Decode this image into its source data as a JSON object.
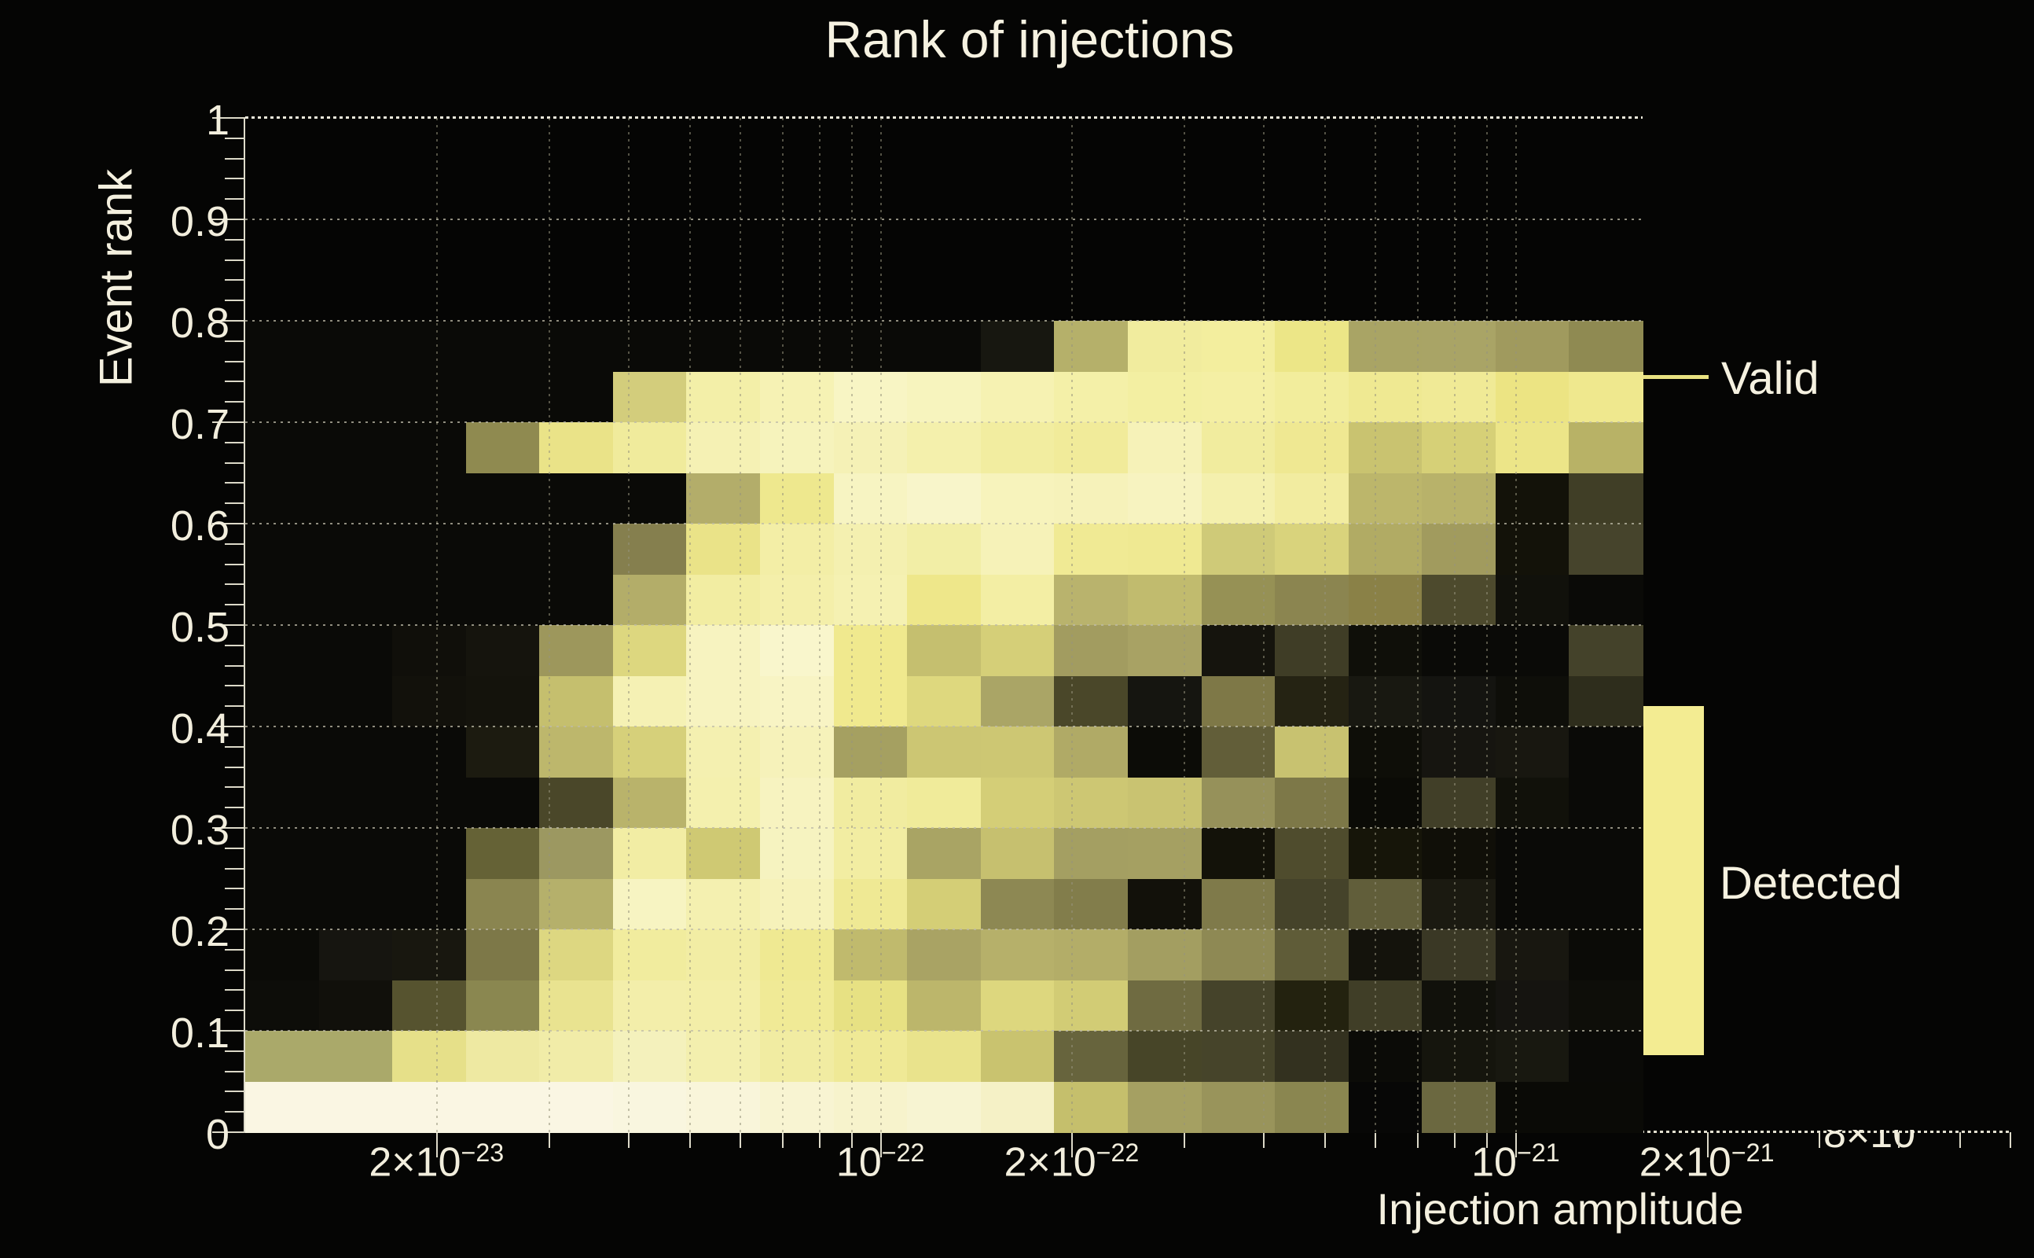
{
  "title": "Rank of injections",
  "y_axis": {
    "label": "Event rank",
    "ticks": [
      {
        "text": "1",
        "value": 1.0
      },
      {
        "text": "0.9",
        "value": 0.9
      },
      {
        "text": "0.8",
        "value": 0.8
      },
      {
        "text": "0.7",
        "value": 0.7
      },
      {
        "text": "0.6",
        "value": 0.6
      },
      {
        "text": "0.5",
        "value": 0.5
      },
      {
        "text": "0.4",
        "value": 0.4
      },
      {
        "text": "0.3",
        "value": 0.3
      },
      {
        "text": "0.2",
        "value": 0.2
      },
      {
        "text": "0.1",
        "value": 0.1
      },
      {
        "text": "0",
        "value": 0.0
      }
    ]
  },
  "x_axis": {
    "label": "Injection amplitude",
    "ticks": [
      {
        "base": "2×10",
        "exp": "−23",
        "value": 2e-23
      },
      {
        "base": "10",
        "exp": "−22",
        "value": 1e-22
      },
      {
        "base": "2×10",
        "exp": "−22",
        "value": 2e-22
      },
      {
        "base": "10",
        "exp": "−21",
        "value": 1e-21
      },
      {
        "base": "2×10",
        "exp": "−21",
        "value": 2e-21
      }
    ],
    "clipped_label": "8×10",
    "minor_values": [
      2e-23,
      3e-23,
      4e-23,
      5e-23,
      6e-23,
      7e-23,
      8e-23,
      9e-23,
      1e-22,
      2e-22,
      3e-22,
      4e-22,
      5e-22,
      6e-22,
      7e-22,
      8e-22,
      9e-22,
      1e-21
    ],
    "extension_tick_values": [
      2e-21,
      3e-21,
      4e-21,
      5e-21,
      6e-21
    ]
  },
  "legend": {
    "valid_label": "Valid",
    "detected_label": "Detected",
    "valid_line_color": "#e9e281",
    "detected_fill_color": "#f3ec92"
  },
  "chart_data": {
    "type": "heatmap",
    "title": "Rank of injections",
    "xlabel": "Injection amplitude",
    "ylabel": "Event rank",
    "x_scale": "log",
    "xlim": [
      1e-23,
      6.7e-21
    ],
    "ylim": [
      0,
      1
    ],
    "grid": "dotted",
    "legend_position": "right",
    "colormap_note": "black = low → dark olive → yellow → cream = high",
    "x_bin_edges": [
      1e-23,
      1.31e-23,
      1.7e-23,
      2.23e-23,
      2.91e-23,
      3.8e-23,
      4.97e-23,
      6.49e-23,
      8.48e-23,
      1.11e-22,
      1.45e-22,
      1.89e-22,
      2.47e-22,
      3.23e-22,
      4.22e-22,
      5.51e-22,
      7.2e-22,
      9.41e-22,
      1.23e-21,
      1.61e-21
    ],
    "y_bin_edges": [
      0,
      0.05,
      0.1,
      0.15,
      0.2,
      0.25,
      0.3,
      0.35,
      0.4,
      0.45,
      0.5,
      0.55,
      0.6,
      0.65,
      0.7,
      0.75,
      0.8
    ],
    "rank_rows_top_to_bottom": [
      "0.75–0.80",
      "0.70–0.75",
      "0.65–0.70",
      "0.60–0.65",
      "0.55–0.60",
      "0.50–0.55",
      "0.45–0.50",
      "0.40–0.45",
      "0.35–0.40",
      "0.30–0.35",
      "0.25–0.30",
      "0.20–0.25",
      "0.15–0.20",
      "0.10–0.15",
      "0.05–0.10",
      "0.00–0.05"
    ],
    "cell_colors_top_to_bottom": [
      [
        "#0a0a07",
        "#0a0a07",
        "#0a0a07",
        "#0a0a07",
        "#0a0a07",
        "#0a0a07",
        "#0a0a07",
        "#0a0a07",
        "#0a0a07",
        "#0a0a07",
        "#171710",
        "#b5b06a",
        "#f1ec9e",
        "#f3ee9e",
        "#ece687",
        "#a9a465",
        "#a9a466",
        "#a09a5e",
        "#8f8a52"
      ],
      [
        "#0a0a07",
        "#0a0a07",
        "#0a0a07",
        "#0a0a07",
        "#0a0a07",
        "#d3cd7c",
        "#f3efa8",
        "#f6f2b4",
        "#f8f5c4",
        "#f7f4be",
        "#f6f2b2",
        "#f4f0a8",
        "#f3efa2",
        "#f4efa4",
        "#f2ed9c",
        "#efe992",
        "#f0ea96",
        "#ece483",
        "#efe88e"
      ],
      [
        "#0a0a07",
        "#0a0a07",
        "#0a0a07",
        "#8f8a50",
        "#eae388",
        "#f0eb9c",
        "#f5f1b4",
        "#f6f3bc",
        "#f5f1b6",
        "#f4f0ac",
        "#f2eda0",
        "#f1eb9a",
        "#f6f2b8",
        "#f1ec9e",
        "#efe892",
        "#c9c370",
        "#d6d077",
        "#ece588",
        "#b8b266"
      ],
      [
        "#0a0a07",
        "#0a0a07",
        "#0a0a07",
        "#0a0a07",
        "#0a0a07",
        "#0a0a07",
        "#b3ad6a",
        "#eee88e",
        "#f7f4c2",
        "#f8f5ca",
        "#f7f3bc",
        "#f6f2ba",
        "#f7f3c0",
        "#f4f0ae",
        "#f2eca0",
        "#bcb66b",
        "#b8b26a",
        "#131209",
        "#403e26"
      ],
      [
        "#0a0a07",
        "#0a0a07",
        "#0a0a07",
        "#0a0a07",
        "#0a0a07",
        "#857f4e",
        "#eae388",
        "#f3eea6",
        "#f4f0b0",
        "#f2eea6",
        "#f6f2b8",
        "#f0ea94",
        "#efe992",
        "#cfca78",
        "#d9d37c",
        "#b1ab64",
        "#a19b5e",
        "#131209",
        "#46442c"
      ],
      [
        "#0a0a07",
        "#0a0a07",
        "#0a0a07",
        "#0a0a07",
        "#0a0a07",
        "#b3ad69",
        "#f2eda2",
        "#f4efaa",
        "#f5f1b2",
        "#eee78a",
        "#f3eea4",
        "#b9b36d",
        "#c1bb6e",
        "#969155",
        "#8b8550",
        "#8a8147",
        "#4d4a2d",
        "#11110b",
        "#0a0a07"
      ],
      [
        "#0a0a07",
        "#0a0a07",
        "#100f0a",
        "#15140d",
        "#9d975c",
        "#ddd77f",
        "#f7f3c0",
        "#f9f6cc",
        "#f0e98e",
        "#c5bf6f",
        "#d5cf78",
        "#a29c60",
        "#a8a264",
        "#15140d",
        "#3f3d26",
        "#0f0f09",
        "#0a0a07",
        "#0a0a07",
        "#44422a"
      ],
      [
        "#0a0a07",
        "#0a0a07",
        "#12110b",
        "#14130c",
        "#c5bf6e",
        "#f5f1b4",
        "#f7f3c0",
        "#f8f4c4",
        "#f0e98e",
        "#ded87e",
        "#aaa566",
        "#4a4729",
        "#151510",
        "#7e7847",
        "#252313",
        "#181811",
        "#141410",
        "#0e0e09",
        "#2e2d1c"
      ],
      [
        "#0a0a07",
        "#0a0a07",
        "#0a0a07",
        "#1c1b10",
        "#bdb76c",
        "#d6d07a",
        "#f4f0b0",
        "#f6f2ba",
        "#a5a061",
        "#ccc673",
        "#cdc773",
        "#b0aa66",
        "#0c0c07",
        "#625e39",
        "#c8c270",
        "#0e0e08",
        "#161510",
        "#181710",
        "#0a0a07"
      ],
      [
        "#0a0a07",
        "#0a0a07",
        "#0a0a07",
        "#0a0a07",
        "#4a4729",
        "#b9b36b",
        "#f4f0ae",
        "#f7f3c0",
        "#f1eca0",
        "#f0eb9a",
        "#d4ce77",
        "#cdc773",
        "#c9c371",
        "#96915a",
        "#7d7848",
        "#0b0b06",
        "#413f28",
        "#11110a",
        "#0a0a07"
      ],
      [
        "#0a0a07",
        "#0a0a07",
        "#0a0a07",
        "#656236",
        "#9c9861",
        "#f2eda4",
        "#cfc973",
        "#f6f3c0",
        "#f2eda2",
        "#a9a464",
        "#c6c06f",
        "#a49f62",
        "#a5a062",
        "#131209",
        "#4f4c2d",
        "#161509",
        "#100f08",
        "#0a0a07",
        "#0a0a07"
      ],
      [
        "#0a0a07",
        "#0a0a07",
        "#0a0a07",
        "#8a8550",
        "#b5b06b",
        "#f7f4c2",
        "#f4f0b0",
        "#f6f2ba",
        "#efe994",
        "#d4ce76",
        "#8d8853",
        "#827d4b",
        "#12110a",
        "#7f7a4a",
        "#45432a",
        "#615e3a",
        "#1b1a11",
        "#0a0a07",
        "#0a0a07"
      ],
      [
        "#0b0b07",
        "#161510",
        "#18170f",
        "#7d7848",
        "#ddd781",
        "#f1ec9e",
        "#f2eda4",
        "#efe992",
        "#c0ba6d",
        "#a9a364",
        "#b6b06a",
        "#b3ad68",
        "#a39e61",
        "#8e8954",
        "#5f5c38",
        "#14130c",
        "#3a3825",
        "#181710",
        "#0b0b07"
      ],
      [
        "#0d0d09",
        "#11100b",
        "#56532f",
        "#8a8750",
        "#e9e390",
        "#f3eeaa",
        "#f3eea8",
        "#f0ea96",
        "#e7e183",
        "#bcb66b",
        "#ddd77e",
        "#d2cc75",
        "#6f6b41",
        "#45432a",
        "#23220f",
        "#403e27",
        "#11110b",
        "#151410",
        "#0e0e09"
      ],
      [
        "#aaa96a",
        "#aaa96a",
        "#e6e089",
        "#eee9a2",
        "#f1eca8",
        "#f4f1bc",
        "#f3efae",
        "#f1eca2",
        "#efe996",
        "#e9e38c",
        "#c9c36f",
        "#67643d",
        "#474528",
        "#46442a",
        "#33311f",
        "#0b0b07",
        "#15150d",
        "#181810",
        "#0a0a07"
      ],
      [
        "#faf6e3",
        "#faf6e3",
        "#faf6e3",
        "#faf6e3",
        "#faf6e3",
        "#f9f6df",
        "#f9f5da",
        "#f8f4d2",
        "#f7f3cc",
        "#f7f4d2",
        "#f5f1c6",
        "#c5bf6c",
        "#a5a062",
        "#99945b",
        "#8a8650",
        "#070706",
        "#6b6840",
        "#0a0a06",
        "#0a0a06"
      ]
    ]
  }
}
